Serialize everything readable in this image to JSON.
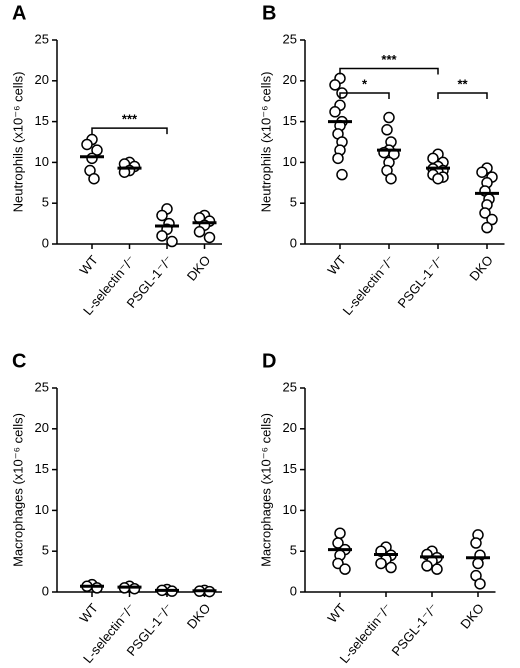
{
  "chart_data": [
    {
      "type": "strip",
      "label": "A",
      "ylabel": "Neutrophils (x10⁻⁶ cells)",
      "categories": [
        "WT",
        "L-selectin⁻/⁻",
        "PSGL-1⁻/⁻",
        "DKO"
      ],
      "points": [
        [
          12.8,
          12.2,
          11.5,
          10.5,
          9.0,
          8.0
        ],
        [
          10.0,
          9.8,
          9.5,
          9.0,
          8.8
        ],
        [
          4.3,
          3.5,
          2.5,
          1.8,
          1.0,
          0.3
        ],
        [
          3.5,
          3.2,
          2.8,
          2.3,
          1.5,
          0.8
        ]
      ],
      "means": [
        10.7,
        9.3,
        2.2,
        2.6
      ],
      "ylim": [
        0,
        25
      ],
      "yticks": [
        0,
        5,
        10,
        15,
        20,
        25
      ],
      "color": "#000000",
      "annotations": [
        {
          "from": 0,
          "to": 2,
          "label": "***"
        }
      ]
    },
    {
      "type": "strip",
      "label": "B",
      "ylabel": "Neutrophils (x10⁻⁶ cells)",
      "categories": [
        "WT",
        "L-selectin⁻/⁻",
        "PSGL-1⁻/⁻",
        "DKO"
      ],
      "points": [
        [
          20.3,
          19.5,
          18.5,
          17.0,
          16.2,
          15.0,
          14.5,
          13.5,
          12.5,
          11.5,
          10.5,
          8.5
        ],
        [
          15.5,
          14.0,
          12.5,
          11.5,
          11.2,
          11.0,
          10.0,
          9.0,
          8.0
        ],
        [
          11.0,
          10.5,
          10.0,
          9.5,
          9.2,
          9.0,
          8.8,
          8.5,
          8.2,
          8.0
        ],
        [
          9.3,
          8.8,
          8.2,
          7.5,
          6.5,
          5.5,
          4.8,
          3.8,
          3.0,
          2.0
        ]
      ],
      "means": [
        15.0,
        11.5,
        9.3,
        6.2
      ],
      "ylim": [
        0,
        25
      ],
      "yticks": [
        0,
        5,
        10,
        15,
        20,
        25
      ],
      "color": "#000000",
      "annotations": [
        {
          "from": 0,
          "to": 1,
          "label": "*"
        },
        {
          "from": 2,
          "to": 3,
          "label": "**"
        },
        {
          "from": 0,
          "to": 2,
          "label": "***"
        }
      ]
    },
    {
      "type": "strip",
      "label": "C",
      "ylabel": "Macrophages (x10⁻⁶ cells)",
      "categories": [
        "WT",
        "L-selectin⁻/⁻",
        "PSGL-1⁻/⁻",
        "DKO"
      ],
      "points": [
        [
          0.9,
          0.7,
          0.5
        ],
        [
          0.7,
          0.5,
          0.4
        ],
        [
          0.3,
          0.2,
          0.1
        ],
        [
          0.2,
          0.1,
          0.05
        ]
      ],
      "means": [
        0.7,
        0.6,
        0.2,
        0.15
      ],
      "ylim": [
        0,
        25
      ],
      "yticks": [
        0,
        5,
        10,
        15,
        20,
        25
      ],
      "color": "#000000",
      "annotations": []
    },
    {
      "type": "strip",
      "label": "D",
      "ylabel": "Macrophages (x10⁻⁶ cells)",
      "categories": [
        "WT",
        "L-selectin⁻/⁻",
        "PSGL-1⁻/⁻",
        "DKO"
      ],
      "points": [
        [
          7.2,
          6.0,
          5.2,
          4.5,
          3.5,
          2.8
        ],
        [
          5.5,
          5.0,
          4.5,
          4.0,
          3.5,
          3.0
        ],
        [
          5.0,
          4.6,
          4.2,
          3.8,
          3.2,
          2.8
        ],
        [
          7.0,
          6.0,
          4.5,
          3.5,
          2.0,
          1.0
        ]
      ],
      "means": [
        5.2,
        4.6,
        4.3,
        4.2
      ],
      "ylim": [
        0,
        25
      ],
      "yticks": [
        0,
        5,
        10,
        15,
        20,
        25
      ],
      "color": "#000000",
      "annotations": []
    }
  ]
}
